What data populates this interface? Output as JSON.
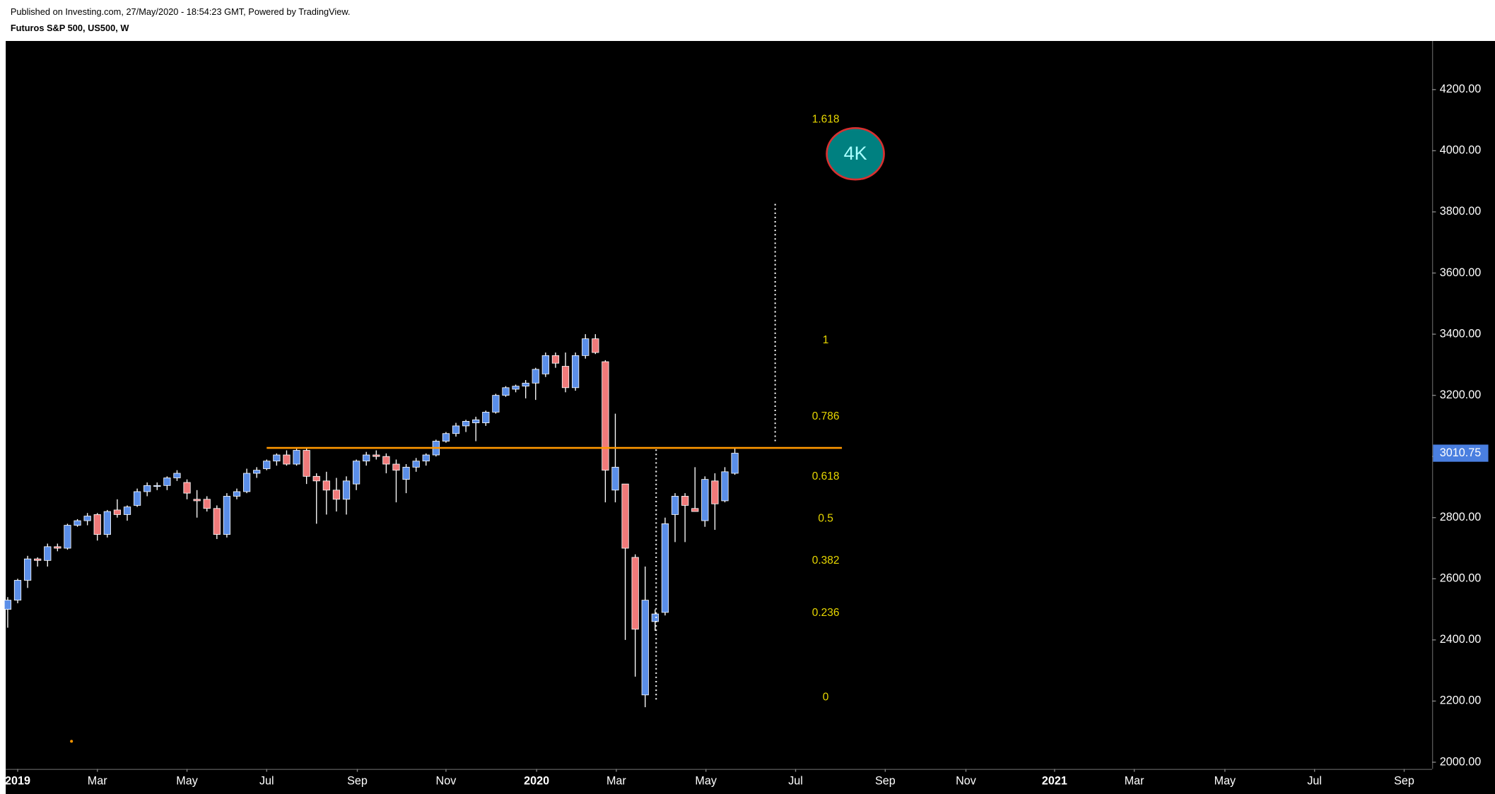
{
  "header": {
    "published": "Published on Investing.com, 27/May/2020 - 18:54:23 GMT, Powered by TradingView.",
    "symbol": "Futuros S&P 500, US500, W"
  },
  "chart_data": {
    "type": "candlestick",
    "up_color": "#5a8ee8",
    "down_color": "#f07a7a",
    "open": [
      2500,
      2530,
      2595,
      2665,
      2660,
      2705,
      2700,
      2775,
      2790,
      2810,
      2745,
      2825,
      2810,
      2840,
      2885,
      2905,
      2905,
      2930,
      2915,
      2860,
      2860,
      2830,
      2745,
      2870,
      2885,
      2945,
      2960,
      2985,
      3005,
      2975,
      3020,
      2935,
      2920,
      2890,
      2860,
      2910,
      2985,
      3005,
      3000,
      2975,
      2925,
      2965,
      2985,
      3005,
      3050,
      3075,
      3100,
      3110,
      3110,
      3145,
      3200,
      3220,
      3230,
      3240,
      3270,
      3330,
      3295,
      3225,
      3330,
      3385,
      3310,
      2890,
      2910,
      2670,
      2220,
      2460,
      2490,
      2810,
      2870,
      2830,
      2790,
      2920,
      2855,
      2945
    ],
    "high": [
      2540,
      2600,
      2675,
      2670,
      2715,
      2715,
      2780,
      2795,
      2815,
      2815,
      2825,
      2860,
      2840,
      2895,
      2915,
      2915,
      2935,
      2955,
      2925,
      2890,
      2870,
      2840,
      2880,
      2895,
      2960,
      2965,
      2990,
      3010,
      3020,
      3025,
      3030,
      2945,
      2950,
      2930,
      2935,
      2990,
      3015,
      3020,
      3010,
      2990,
      2975,
      2995,
      3010,
      3055,
      3080,
      3110,
      3120,
      3130,
      3150,
      3205,
      3230,
      3235,
      3250,
      3290,
      3340,
      3340,
      3340,
      3340,
      3400,
      3400,
      3315,
      3140,
      2910,
      2680,
      2640,
      2500,
      2800,
      2880,
      2880,
      2965,
      2935,
      2945,
      2965,
      3030
    ],
    "low": [
      2440,
      2520,
      2570,
      2640,
      2640,
      2690,
      2695,
      2770,
      2775,
      2725,
      2735,
      2800,
      2790,
      2835,
      2870,
      2890,
      2890,
      2920,
      2860,
      2800,
      2820,
      2730,
      2735,
      2860,
      2880,
      2930,
      2955,
      2970,
      2970,
      2970,
      2910,
      2780,
      2810,
      2820,
      2810,
      2890,
      2970,
      2990,
      2945,
      2850,
      2880,
      2950,
      2970,
      3000,
      3045,
      3065,
      3080,
      3050,
      3100,
      3140,
      3195,
      3210,
      3190,
      3185,
      3260,
      3290,
      3210,
      3215,
      3320,
      3335,
      2850,
      2850,
      2400,
      2280,
      2180,
      2430,
      2480,
      2720,
      2720,
      2820,
      2770,
      2760,
      2850,
      2940
    ],
    "close": [
      2530,
      2595,
      2665,
      2660,
      2705,
      2700,
      2775,
      2790,
      2805,
      2745,
      2820,
      2810,
      2835,
      2885,
      2905,
      2905,
      2930,
      2945,
      2880,
      2855,
      2830,
      2745,
      2870,
      2885,
      2945,
      2955,
      2985,
      3005,
      2975,
      3020,
      2935,
      2920,
      2890,
      2860,
      2920,
      2985,
      3005,
      3000,
      2975,
      2955,
      2965,
      2985,
      3005,
      3050,
      3075,
      3100,
      3115,
      3120,
      3145,
      3200,
      3225,
      3230,
      3240,
      3285,
      3330,
      3305,
      3225,
      3330,
      3385,
      3340,
      2955,
      2965,
      2700,
      2435,
      2530,
      2485,
      2780,
      2870,
      2840,
      2820,
      2925,
      2845,
      2950,
      3010.75
    ],
    "xlim": [
      -0.2,
      143
    ],
    "xticks": [
      {
        "value": 1,
        "label": "2019"
      },
      {
        "value": 9,
        "label": "Mar"
      },
      {
        "value": 18,
        "label": "May"
      },
      {
        "value": 26,
        "label": "Jul"
      },
      {
        "value": 35.1,
        "label": "Sep"
      },
      {
        "value": 44,
        "label": "Nov"
      },
      {
        "value": 53.1,
        "label": "2020"
      },
      {
        "value": 61.1,
        "label": "Mar"
      },
      {
        "value": 70.1,
        "label": "May"
      },
      {
        "value": 79.1,
        "label": "Jul"
      },
      {
        "value": 88.1,
        "label": "Sep"
      },
      {
        "value": 96.2,
        "label": "Nov"
      },
      {
        "value": 105.1,
        "label": "2021"
      },
      {
        "value": 113.1,
        "label": "Mar"
      },
      {
        "value": 122.2,
        "label": "May"
      },
      {
        "value": 131.2,
        "label": "Jul"
      },
      {
        "value": 140.2,
        "label": "Sep"
      }
    ],
    "ylim": [
      1978,
      4359
    ],
    "yticks": [
      {
        "value": 2000,
        "label": "2000.00"
      },
      {
        "value": 2200,
        "label": "2200.00"
      },
      {
        "value": 2400,
        "label": "2400.00"
      },
      {
        "value": 2600,
        "label": "2600.00"
      },
      {
        "value": 2800,
        "label": "2800.00"
      },
      {
        "value": 3000,
        "label": "3000.00"
      },
      {
        "value": 3200,
        "label": "3200.00"
      },
      {
        "value": 3400,
        "label": "3400.00"
      },
      {
        "value": 3600,
        "label": "3600.00"
      },
      {
        "value": 3800,
        "label": "3800.00"
      },
      {
        "value": 4000,
        "label": "4000.00"
      },
      {
        "value": 4200,
        "label": "4200.00"
      }
    ],
    "fib": {
      "low": 2212,
      "high": 3380,
      "levels": [
        0,
        0.236,
        0.382,
        0.5,
        0.618,
        0.786,
        1,
        1.618
      ],
      "color": "#e8d800"
    },
    "hline": {
      "value": 3028,
      "x_start": 26,
      "x_end": 83.75,
      "color": "#ff9800"
    },
    "vlines": [
      {
        "x": 65.1,
        "y_start": 2205,
        "y_end": 3025
      },
      {
        "x": 77.05,
        "y_start": 3050,
        "y_end": 3832
      }
    ],
    "badge": {
      "text": "4K",
      "x": 85.1,
      "value": 3990,
      "color": "#008080",
      "border": "#d83030",
      "text_color": "#a8ffff"
    }
  }
}
